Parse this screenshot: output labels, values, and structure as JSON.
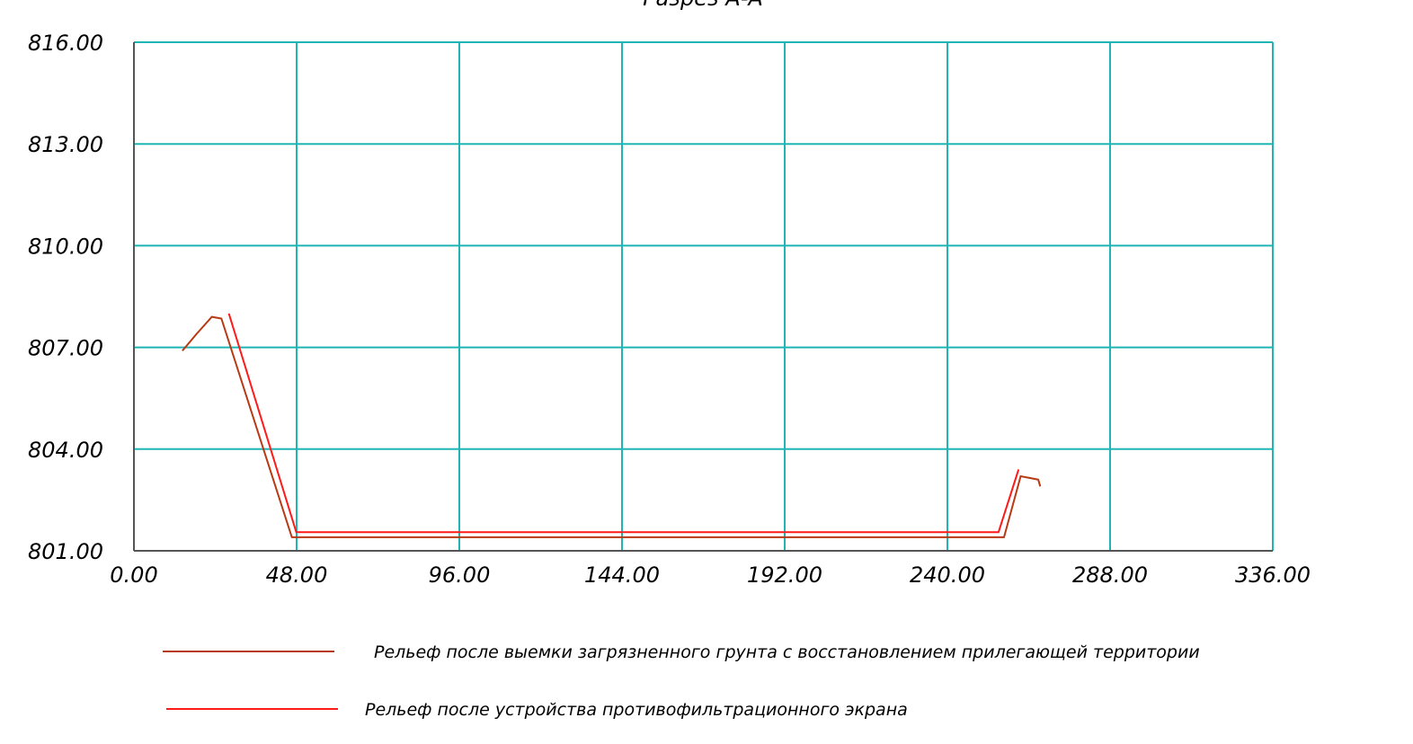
{
  "chart_data": {
    "type": "line",
    "title": "Разрез А-А",
    "xlabel": "",
    "ylabel": "",
    "xlim": [
      0,
      336
    ],
    "ylim": [
      801,
      816
    ],
    "x_ticks": [
      "0.00",
      "48.00",
      "96.00",
      "144.00",
      "192.00",
      "240.00",
      "288.00",
      "336.00"
    ],
    "y_ticks": [
      "801.00",
      "804.00",
      "807.00",
      "810.00",
      "813.00",
      "816.00"
    ],
    "x_tick_values": [
      0,
      48,
      96,
      144,
      192,
      240,
      288,
      336
    ],
    "y_tick_values": [
      801,
      804,
      807,
      810,
      813,
      816
    ],
    "grid": true,
    "legend_position": "bottom",
    "colors": {
      "grid": "#1fb5b5",
      "axis": "#555555"
    },
    "series": [
      {
        "name": "Рельеф после выемки загрязненного грунта с восстановлением прилегающей территории",
        "color": "#b83a14",
        "x": [
          14.3,
          18.5,
          23.0,
          25.8,
          46.6,
          256.7,
          261.6,
          266.8,
          267.4
        ],
        "y": [
          806.9,
          807.4,
          807.9,
          807.85,
          801.4,
          801.4,
          803.2,
          803.1,
          802.9
        ]
      },
      {
        "name": "Рельеф после  устройства противофильтрационного экрана",
        "color": "#ff1a1a",
        "x": [
          28.0,
          47.9,
          255.1,
          261.0
        ],
        "y": [
          808.0,
          801.55,
          801.55,
          803.4
        ]
      }
    ]
  }
}
